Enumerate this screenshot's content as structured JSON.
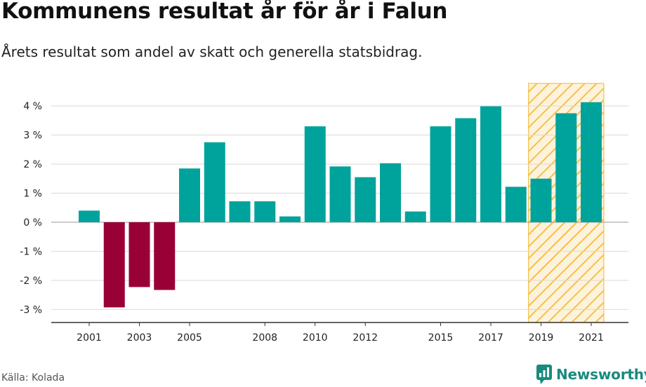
{
  "title": "Kommunens resultat år för år i Falun",
  "subtitle": "Årets resultat som andel av skatt och generella statsbidrag.",
  "source": "Källa: Kolada",
  "brand": {
    "name": "Newsworthy",
    "icon": "newsworthy-logo-icon",
    "color": "#1a8a7e"
  },
  "chart_data": {
    "type": "bar",
    "categories": [
      "2001",
      "2002",
      "2003",
      "2004",
      "2005",
      "2006",
      "2007",
      "2008",
      "2009",
      "2010",
      "2011",
      "2012",
      "2013",
      "2014",
      "2015",
      "2016",
      "2017",
      "2018",
      "2019",
      "2020",
      "2021"
    ],
    "values": [
      0.4,
      -2.93,
      -2.23,
      -2.33,
      1.85,
      2.75,
      0.72,
      0.72,
      0.2,
      3.3,
      1.92,
      1.55,
      2.03,
      0.37,
      3.3,
      3.58,
      3.99,
      1.22,
      1.5,
      3.75,
      4.13
    ],
    "x_tick_labels": [
      "2001",
      "2003",
      "2005",
      "2008",
      "2010",
      "2012",
      "2015",
      "2017",
      "2019",
      "2021"
    ],
    "y_ticks": [
      4,
      3,
      2,
      1,
      0,
      -1,
      -2,
      -3
    ],
    "y_tick_labels": [
      "4 %",
      "3 %",
      "2 %",
      "1 %",
      "0 %",
      "-1 %",
      "-2 %",
      "-3 %"
    ],
    "ylim": [
      -3.45,
      4.8
    ],
    "positive_color": "#00a39b",
    "negative_color": "#980036",
    "highlight": {
      "from": "2019",
      "to": "2021",
      "color": "#f5c04a"
    },
    "grid": true
  }
}
